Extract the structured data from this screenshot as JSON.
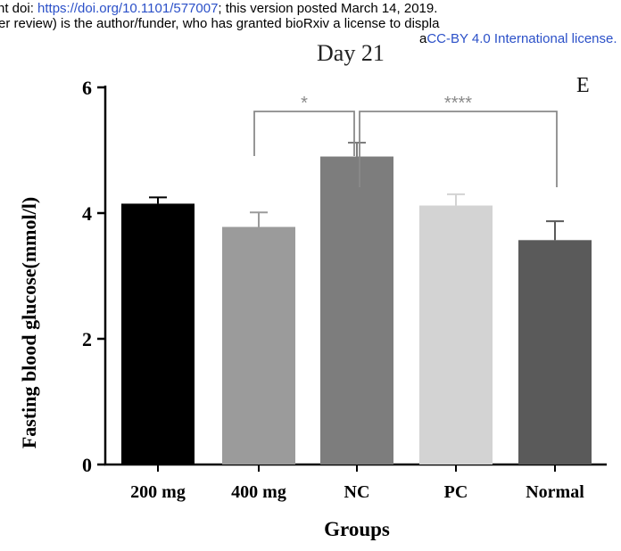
{
  "banner": {
    "line1_prefix": "nt doi: ",
    "line1_link": "https://doi.org/10.1101/577007",
    "line1_suffix": "; this version posted March 14, 2019.",
    "line2": "er review) is the author/funder, who has granted bioRxiv a license to displa",
    "line3_prefix": "a",
    "line3_link": "CC-BY 4.0 International license."
  },
  "colors": {
    "link": "#2b50c8",
    "axis": "#000000",
    "bracket": "#8a8a8a"
  },
  "chart_data": {
    "type": "bar",
    "title": "Day 21",
    "panel_label": "E",
    "xlabel": "Groups",
    "ylabel": "Fasting blood glucose(mmol/l)",
    "ylim": [
      0,
      6
    ],
    "yticks": [
      0,
      2,
      4,
      6
    ],
    "categories": [
      "200 mg",
      "400 mg",
      "NC",
      "PC",
      "Normal"
    ],
    "values": [
      4.15,
      3.78,
      4.9,
      4.12,
      3.57
    ],
    "errors": [
      0.1,
      0.23,
      0.22,
      0.18,
      0.3
    ],
    "bar_colors": [
      "#000000",
      "#9b9b9b",
      "#7d7d7d",
      "#d3d3d3",
      "#5a5a5a"
    ],
    "significance": [
      {
        "from": "400 mg",
        "to": "NC",
        "label": "*"
      },
      {
        "from": "NC",
        "to": "Normal",
        "label": "****"
      }
    ]
  }
}
